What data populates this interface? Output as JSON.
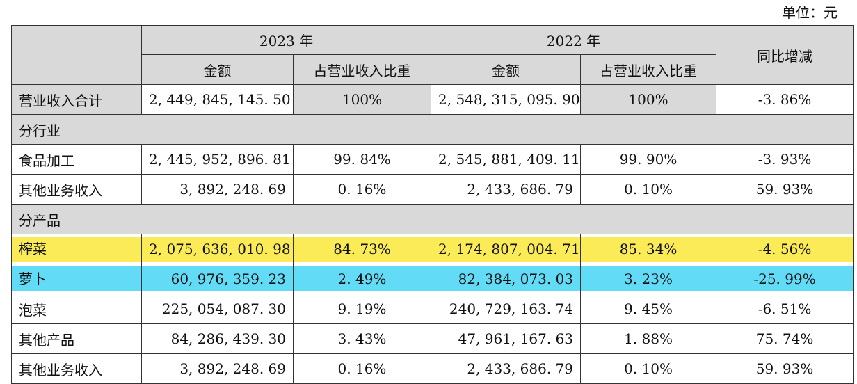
{
  "unit_label": "单位：元",
  "header": {
    "year1": "2023 年",
    "year2": "2022 年",
    "amount": "金额",
    "share": "占营业收入比重",
    "yoy": "同比增减"
  },
  "total_row": {
    "label": "营业收入合计",
    "a2023": "2, 449, 845, 145. 50",
    "s2023": "100%",
    "a2022": "2, 548, 315, 095. 90",
    "s2022": "100%",
    "yoy": "-3. 86%"
  },
  "sections": {
    "industry": "分行业",
    "product": "分产品"
  },
  "industry_rows": [
    {
      "label": "食品加工",
      "a2023": "2, 445, 952, 896. 81",
      "s2023": "99. 84%",
      "a2022": "2, 545, 881, 409. 11",
      "s2022": "99. 90%",
      "yoy": "-3. 93%"
    },
    {
      "label": "其他业务收入",
      "a2023": "3, 892, 248. 69",
      "s2023": "0. 16%",
      "a2022": "2, 433, 686. 79",
      "s2022": "0. 10%",
      "yoy": "59. 93%"
    }
  ],
  "product_rows": [
    {
      "label": "榨菜",
      "a2023": "2, 075, 636, 010. 98",
      "s2023": "84. 73%",
      "a2022": "2, 174, 807, 004. 71",
      "s2022": "85. 34%",
      "yoy": "-4. 56%"
    },
    {
      "label": "萝卜",
      "a2023": "60, 976, 359. 23",
      "s2023": "2. 49%",
      "a2022": "82, 384, 073. 03",
      "s2022": "3. 23%",
      "yoy": "-25. 99%"
    },
    {
      "label": "泡菜",
      "a2023": "225, 054, 087. 30",
      "s2023": "9. 19%",
      "a2022": "240, 729, 163. 74",
      "s2022": "9. 45%",
      "yoy": "-6. 51%"
    },
    {
      "label": "其他产品",
      "a2023": "84, 286, 439. 30",
      "s2023": "3. 43%",
      "a2022": "47, 961, 167. 63",
      "s2022": "1. 88%",
      "yoy": "75. 74%"
    },
    {
      "label": "其他业务收入",
      "a2023": "3, 892, 248. 69",
      "s2023": "0. 16%",
      "a2022": "2, 433, 686. 79",
      "s2022": "0. 10%",
      "yoy": "59. 93%"
    }
  ],
  "colors": {
    "header_gray": "#d9d9d9",
    "highlight_yellow": "#fbeb57",
    "highlight_blue": "#62dcf6"
  }
}
